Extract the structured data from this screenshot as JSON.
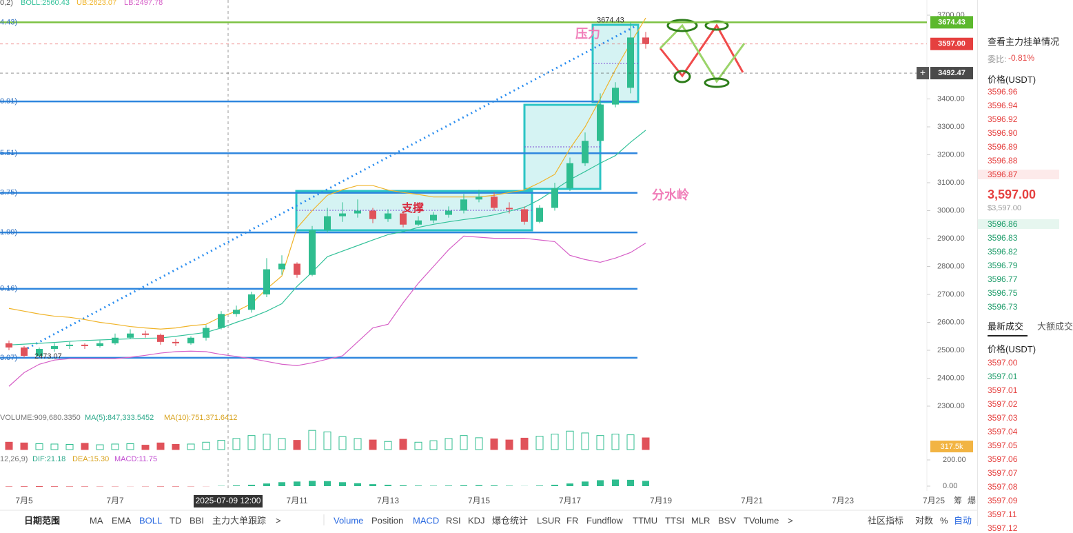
{
  "indicator_header": {
    "params": "0,2)",
    "boll": "BOLL:2560.43",
    "ub": "UB:2623.07",
    "lb": "LB:2497.78"
  },
  "price_axis": {
    "ylim": [
      2300,
      3700
    ],
    "yticks": [
      {
        "value": 3700,
        "label": "3700.00"
      },
      {
        "value": 3400,
        "label": "3400.00"
      },
      {
        "value": 3300,
        "label": "3300.00"
      },
      {
        "value": 3200,
        "label": "3200.00"
      },
      {
        "value": 3100,
        "label": "3100.00"
      },
      {
        "value": 3000,
        "label": "3000.00"
      },
      {
        "value": 2900,
        "label": "2900.00"
      },
      {
        "value": 2800,
        "label": "2800.00"
      },
      {
        "value": 2700,
        "label": "2700.00"
      },
      {
        "value": 2600,
        "label": "2600.00"
      },
      {
        "value": 2500,
        "label": "2500.00"
      },
      {
        "value": 2400,
        "label": "2400.00"
      },
      {
        "value": 2300,
        "label": "2300.00"
      }
    ]
  },
  "fib_levels": [
    {
      "value": 3674.43,
      "label": "4.43)",
      "color": "#7cc242"
    },
    {
      "value": 3390.91,
      "label": "0.91)",
      "color": "#2e86de"
    },
    {
      "value": 3205.51,
      "label": "5.51)",
      "color": "#2e86de"
    },
    {
      "value": 3063.75,
      "label": "3.75)",
      "color": "#2e86de"
    },
    {
      "value": 2921.99,
      "label": "1.99)",
      "color": "#2e86de"
    },
    {
      "value": 2720.16,
      "label": "0.16)",
      "color": "#2e86de"
    },
    {
      "value": 2473.07,
      "label": "3.07)",
      "color": "#2e86de"
    }
  ],
  "price_lines": [
    {
      "value": 3674.43,
      "label": "3674.43",
      "color": "#5cb82d"
    },
    {
      "value": 3597,
      "label": "3597.00",
      "color": "#e5403f"
    },
    {
      "value": 3492.47,
      "label": "3492.47",
      "color": "#4a4a4a"
    }
  ],
  "high_marker": {
    "value": 3674.43,
    "label": "3674.43"
  },
  "low_marker": {
    "value": 2473.07,
    "label": "2473.07"
  },
  "annotations": {
    "resistance": "压力",
    "support": "支撑",
    "watershed": "分水岭"
  },
  "candles": {
    "up_color": "#2fbd8f",
    "down_color": "#e0525a",
    "open": [
      2525,
      2510,
      2480,
      2505,
      2515,
      2520,
      2515,
      2525,
      2545,
      2560,
      2555,
      2530,
      2525,
      2545,
      2580,
      2630,
      2645,
      2700,
      2790,
      2810,
      2770,
      2930,
      2980,
      2990,
      3000,
      2970,
      2990,
      2950,
      2965,
      2985,
      3000,
      3040,
      3050,
      3010,
      3005,
      2960,
      3010,
      3080,
      3170,
      3250,
      3380,
      3440,
      3620
    ],
    "high": [
      2535,
      2515,
      2510,
      2525,
      2530,
      2525,
      2535,
      2560,
      2575,
      2570,
      2560,
      2540,
      2550,
      2590,
      2640,
      2660,
      2710,
      2830,
      2840,
      2815,
      2945,
      3010,
      3030,
      3040,
      3010,
      3005,
      3000,
      2980,
      2995,
      3015,
      3060,
      3075,
      3065,
      3030,
      3015,
      3020,
      3100,
      3190,
      3280,
      3420,
      3460,
      3674.43,
      3640
    ],
    "low": [
      2500,
      2473.07,
      2478,
      2495,
      2505,
      2505,
      2510,
      2520,
      2540,
      2545,
      2520,
      2515,
      2520,
      2535,
      2575,
      2620,
      2635,
      2690,
      2770,
      2760,
      2765,
      2920,
      2960,
      2975,
      2955,
      2960,
      2940,
      2945,
      2955,
      2975,
      2990,
      3030,
      3000,
      2990,
      2950,
      2955,
      3000,
      3070,
      3160,
      3240,
      3370,
      3420,
      3580
    ],
    "close": [
      2510,
      2480,
      2505,
      2515,
      2520,
      2515,
      2525,
      2545,
      2560,
      2555,
      2530,
      2525,
      2545,
      2580,
      2630,
      2645,
      2700,
      2790,
      2810,
      2770,
      2930,
      2980,
      2990,
      3000,
      2970,
      2990,
      2950,
      2965,
      2985,
      3000,
      3040,
      3050,
      3010,
      3005,
      2960,
      3010,
      3080,
      3170,
      3250,
      3380,
      3440,
      3620,
      3597
    ]
  },
  "boll": [
    {
      "name": "UB",
      "color": "#f0b429",
      "values": [
        2650,
        2640,
        2630,
        2622,
        2618,
        2610,
        2600,
        2593,
        2585,
        2580,
        2576,
        2580,
        2588,
        2593,
        2620,
        2640,
        2667,
        2720,
        2766,
        2938,
        3000,
        3055,
        3075,
        3090,
        3090,
        3074,
        3065,
        3058,
        3049,
        3049,
        3049,
        3049,
        3055,
        3065,
        3074,
        3100,
        3130,
        3222,
        3300,
        3400,
        3505,
        3600,
        3690
      ]
    },
    {
      "name": "BOLL",
      "color": "#34c29a",
      "values": [
        2519,
        2522,
        2525,
        2528,
        2532,
        2535,
        2537,
        2539,
        2541,
        2543,
        2544,
        2550,
        2557,
        2564,
        2580,
        2600,
        2618,
        2640,
        2667,
        2729,
        2780,
        2835,
        2855,
        2875,
        2895,
        2914,
        2925,
        2940,
        2951,
        2960,
        2968,
        2975,
        2985,
        2998,
        3012,
        3040,
        3075,
        3111,
        3140,
        3170,
        3197,
        3245,
        3288
      ]
    },
    {
      "name": "LB",
      "color": "#d65fc7",
      "values": [
        2371,
        2420,
        2450,
        2465,
        2470,
        2470,
        2470,
        2470,
        2475,
        2482,
        2490,
        2495,
        2497,
        2495,
        2485,
        2478,
        2470,
        2460,
        2450,
        2445,
        2455,
        2468,
        2480,
        2530,
        2580,
        2593,
        2670,
        2740,
        2800,
        2860,
        2909,
        2905,
        2901,
        2901,
        2901,
        2895,
        2889,
        2840,
        2825,
        2815,
        2830,
        2850,
        2884
      ]
    }
  ],
  "volume": {
    "header": {
      "volume": "VOLUME:909,680.3350",
      "ma5": "MA(5):847,333.5452",
      "ma10": "MA(10):751,371.6412"
    },
    "values": [
      200000,
      180000,
      160000,
      150000,
      140000,
      170000,
      130000,
      150000,
      160000,
      120000,
      180000,
      140000,
      150000,
      200000,
      250000,
      300000,
      380000,
      420000,
      300000,
      250000,
      520000,
      480000,
      350000,
      300000,
      260000,
      220000,
      280000,
      200000,
      240000,
      300000,
      380000,
      320000,
      290000,
      260000,
      310000,
      360000,
      420000,
      500000,
      450000,
      380000,
      420000,
      400000,
      317500
    ],
    "tag": {
      "value": 317500,
      "label": "317.5k"
    }
  },
  "macd": {
    "header": {
      "params": "12,26,9)",
      "dif": "DIF:21.18",
      "dea": "DEA:15.30",
      "macd": "MACD:11.75"
    },
    "hist": [
      -3,
      -4,
      -5,
      -4,
      -3,
      -3,
      -2,
      -2,
      -1,
      -2,
      -3,
      -3,
      -2,
      -1,
      2,
      5,
      10,
      20,
      30,
      35,
      40,
      38,
      30,
      22,
      15,
      10,
      6,
      4,
      3,
      4,
      6,
      7,
      5,
      3,
      1,
      4,
      10,
      20,
      35,
      45,
      50,
      48,
      40
    ],
    "yticks": [
      {
        "value": 200,
        "label": "200.00"
      },
      {
        "value": 0,
        "label": "0.00"
      }
    ]
  },
  "x_axis": {
    "labels": [
      "7月5",
      "7月7",
      "7月11",
      "7月13",
      "7月15",
      "7月17",
      "7月19",
      "7月21",
      "7月23",
      "7月25",
      "筹",
      "爆"
    ],
    "crosshair": "2025-07-09 12:00"
  },
  "toolbar": {
    "left": [
      {
        "text": "日期范围",
        "active": false
      },
      {
        "text": "MA",
        "active": false
      },
      {
        "text": "EMA",
        "active": false
      },
      {
        "text": "BOLL",
        "active": true
      },
      {
        "text": "TD",
        "active": false
      },
      {
        "text": "BBI",
        "active": false
      },
      {
        "text": "主力大单跟踪",
        "active": false
      },
      {
        "text": ">",
        "active": false
      }
    ],
    "middle": [
      {
        "text": "Volume",
        "active": true
      },
      {
        "text": "Position",
        "active": false
      },
      {
        "text": "MACD",
        "active": true
      },
      {
        "text": "RSI",
        "active": false
      },
      {
        "text": "KDJ",
        "active": false
      },
      {
        "text": "爆仓统计",
        "active": false
      },
      {
        "text": "LSUR",
        "active": false
      },
      {
        "text": "FR",
        "active": false
      },
      {
        "text": "Fundflow",
        "active": false
      },
      {
        "text": "TTMU",
        "active": false
      },
      {
        "text": "TTSI",
        "active": false
      },
      {
        "text": "MLR",
        "active": false
      },
      {
        "text": "BSV",
        "active": false
      },
      {
        "text": "TVolume",
        "active": false
      },
      {
        "text": ">",
        "active": false
      }
    ],
    "right": [
      {
        "text": "社区指标",
        "active": false
      },
      {
        "text": "对数",
        "active": false
      },
      {
        "text": "%",
        "active": false
      },
      {
        "text": "自动",
        "active": true
      }
    ]
  },
  "order_book": {
    "link": "查看主力挂单情况",
    "ratio_label": "委比:",
    "ratio": "-0.81%",
    "price_header": "价格(USDT)",
    "asks": [
      "3596.96",
      "3596.94",
      "3596.92",
      "3596.90",
      "3596.89",
      "3596.88",
      "3596.87"
    ],
    "last_price": "3,597.00",
    "last_price_usd": "$3,597.00",
    "bids": [
      "3596.86",
      "3596.83",
      "3596.82",
      "3596.79",
      "3596.77",
      "3596.75",
      "3596.73"
    ],
    "tabs": [
      "最新成交",
      "大额成交"
    ],
    "trades_header": "价格(USDT)",
    "trades": [
      {
        "price": "3597.00",
        "color": "#e5403f"
      },
      {
        "price": "3597.01",
        "color": "#1f9d6b"
      },
      {
        "price": "3597.01",
        "color": "#e5403f"
      },
      {
        "price": "3597.02",
        "color": "#e5403f"
      },
      {
        "price": "3597.03",
        "color": "#e5403f"
      },
      {
        "price": "3597.04",
        "color": "#e5403f"
      },
      {
        "price": "3597.05",
        "color": "#e5403f"
      },
      {
        "price": "3597.06",
        "color": "#e5403f"
      },
      {
        "price": "3597.07",
        "color": "#e5403f"
      },
      {
        "price": "3597.08",
        "color": "#e5403f"
      },
      {
        "price": "3597.09",
        "color": "#e5403f"
      },
      {
        "price": "3597.11",
        "color": "#e5403f"
      },
      {
        "price": "3597.12",
        "color": "#e5403f"
      }
    ]
  }
}
